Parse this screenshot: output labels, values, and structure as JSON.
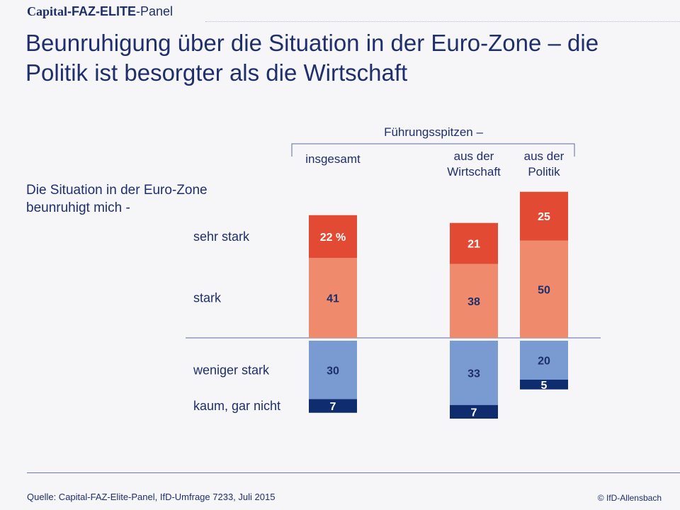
{
  "brand": {
    "part1": "Capital",
    "part2": "-FAZ-ELITE",
    "part3": "-Panel"
  },
  "title": "Beunruhigung über die Situation in der Euro-Zone – die Politik ist besorgter als die Wirtschaft",
  "question": "Die Situation in der Euro-Zone beunruhigt mich -",
  "source": "Quelle: Capital-FAZ-Elite-Panel, IfD-Umfrage 7233, Juli 2015",
  "copyright": "© IfD-Allensbach",
  "colors": {
    "sehr_stark": "#e24a33",
    "stark": "#ef8a6c",
    "weniger_stark": "#7a9bd2",
    "kaum": "#0f2d6e",
    "text_dark": "#1f2f6b"
  },
  "chart_data": {
    "type": "bar",
    "group_label": "Führungsspitzen –",
    "categories": [
      [
        "insgesamt"
      ],
      [
        "aus der",
        "Wirtschaft"
      ],
      [
        "aus der",
        "Politik"
      ]
    ],
    "series": [
      {
        "name": "sehr stark",
        "direction": "up",
        "values": [
          22,
          21,
          25
        ],
        "labels": [
          "22 %",
          "21",
          "25"
        ]
      },
      {
        "name": "stark",
        "direction": "up",
        "values": [
          41,
          38,
          50
        ],
        "labels": [
          "41",
          "38",
          "50"
        ]
      },
      {
        "name": "weniger stark",
        "direction": "down",
        "values": [
          30,
          33,
          20
        ],
        "labels": [
          "30",
          "33",
          "20"
        ]
      },
      {
        "name": "kaum, gar nicht",
        "direction": "down",
        "values": [
          7,
          7,
          5
        ],
        "labels": [
          "7",
          "7",
          "5"
        ]
      }
    ],
    "unit": "%"
  }
}
